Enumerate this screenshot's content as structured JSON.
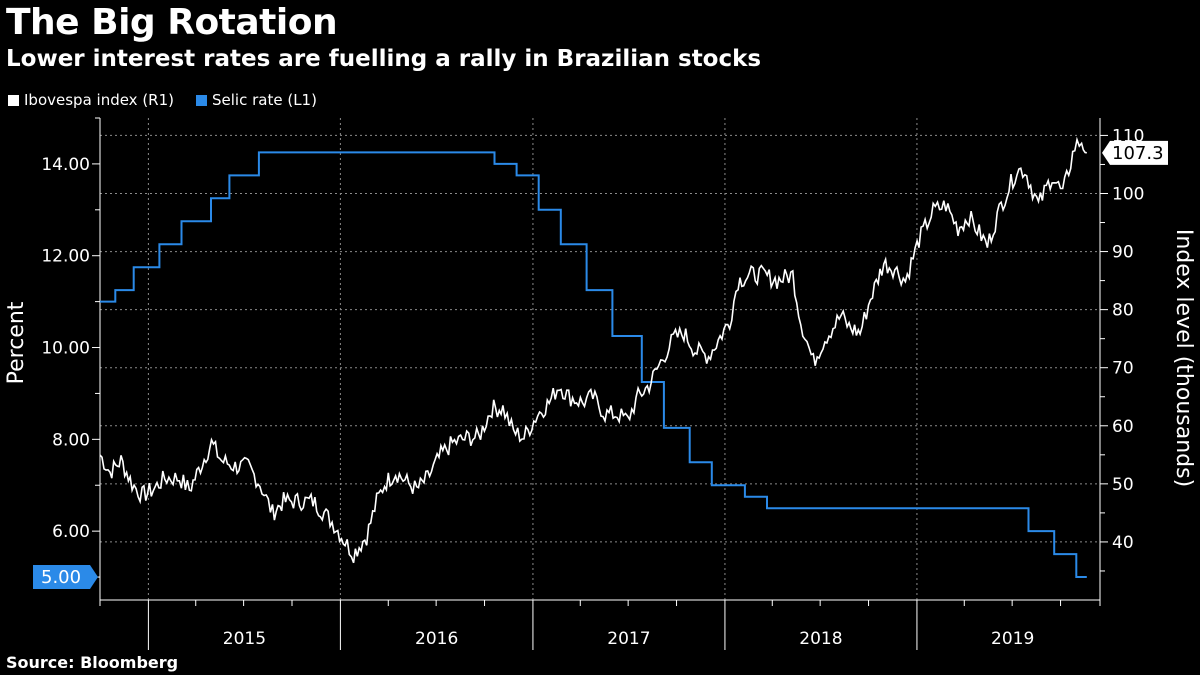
{
  "title": "The Big Rotation",
  "subtitle": "Lower interest rates are fuelling a rally in Brazilian stocks",
  "source": "Source:  Bloomberg",
  "colors": {
    "background": "#000000",
    "ibovespa": "#ffffff",
    "selic": "#2b8ae8",
    "grid": "#8a8a8a"
  },
  "chart_data": {
    "type": "line",
    "x_ticks": [
      "2015",
      "2016",
      "2017",
      "2018",
      "2019"
    ],
    "left_axis": {
      "label": "Percent",
      "ticks": [
        "6.00",
        "8.00",
        "10.00",
        "12.00",
        "14.00"
      ],
      "range": [
        4.5,
        15.0
      ]
    },
    "right_axis": {
      "label": "Index level (thousands)",
      "ticks": [
        "40",
        "50",
        "60",
        "70",
        "80",
        "90",
        "100",
        "110"
      ],
      "range": [
        30,
        113
      ]
    },
    "callouts": {
      "selic_last": "5.00",
      "ibovespa_last": "107.3"
    },
    "series": [
      {
        "name": "Selic rate (L1)",
        "axis": "left",
        "step": true,
        "points": [
          [
            "2014-10-01",
            11.0
          ],
          [
            "2014-10-30",
            11.25
          ],
          [
            "2014-12-04",
            11.75
          ],
          [
            "2015-01-22",
            12.25
          ],
          [
            "2015-03-05",
            12.75
          ],
          [
            "2015-04-30",
            13.25
          ],
          [
            "2015-06-04",
            13.75
          ],
          [
            "2015-07-30",
            14.25
          ],
          [
            "2016-10-20",
            14.0
          ],
          [
            "2016-12-01",
            13.75
          ],
          [
            "2017-01-12",
            13.0
          ],
          [
            "2017-02-23",
            12.25
          ],
          [
            "2017-04-13",
            11.25
          ],
          [
            "2017-06-01",
            10.25
          ],
          [
            "2017-07-27",
            9.25
          ],
          [
            "2017-09-07",
            8.25
          ],
          [
            "2017-10-26",
            7.5
          ],
          [
            "2017-12-07",
            7.0
          ],
          [
            "2018-02-08",
            6.75
          ],
          [
            "2018-03-22",
            6.5
          ],
          [
            "2019-08-01",
            6.0
          ],
          [
            "2019-09-19",
            5.5
          ],
          [
            "2019-10-31",
            5.0
          ],
          [
            "2019-11-20",
            5.0
          ]
        ]
      },
      {
        "name": "Ibovespa index (R1)",
        "axis": "right",
        "step": false,
        "points": [
          [
            "2014-10-01",
            55
          ],
          [
            "2014-10-20",
            52
          ],
          [
            "2014-11-10",
            54
          ],
          [
            "2014-12-01",
            50
          ],
          [
            "2014-12-20",
            48
          ],
          [
            "2015-01-10",
            49
          ],
          [
            "2015-02-01",
            51
          ],
          [
            "2015-03-01",
            51
          ],
          [
            "2015-03-20",
            49
          ],
          [
            "2015-04-10",
            53
          ],
          [
            "2015-05-01",
            57
          ],
          [
            "2015-05-20",
            54
          ],
          [
            "2015-06-15",
            53
          ],
          [
            "2015-07-10",
            53
          ],
          [
            "2015-08-01",
            50
          ],
          [
            "2015-08-25",
            45
          ],
          [
            "2015-09-15",
            47
          ],
          [
            "2015-10-15",
            47
          ],
          [
            "2015-11-10",
            47
          ],
          [
            "2015-12-01",
            45
          ],
          [
            "2015-12-20",
            43
          ],
          [
            "2016-01-10",
            40
          ],
          [
            "2016-01-26",
            38
          ],
          [
            "2016-02-20",
            41
          ],
          [
            "2016-03-10",
            47
          ],
          [
            "2016-03-25",
            50
          ],
          [
            "2016-04-15",
            52
          ],
          [
            "2016-05-10",
            50
          ],
          [
            "2016-05-25",
            49
          ],
          [
            "2016-06-15",
            51
          ],
          [
            "2016-07-10",
            55
          ],
          [
            "2016-08-01",
            57
          ],
          [
            "2016-09-01",
            58
          ],
          [
            "2016-09-20",
            58
          ],
          [
            "2016-10-15",
            63
          ],
          [
            "2016-11-05",
            63
          ],
          [
            "2016-11-25",
            59
          ],
          [
            "2016-12-15",
            58
          ],
          [
            "2017-01-10",
            62
          ],
          [
            "2017-02-01",
            64
          ],
          [
            "2017-02-20",
            67
          ],
          [
            "2017-03-10",
            65
          ],
          [
            "2017-04-05",
            64
          ],
          [
            "2017-04-25",
            65
          ],
          [
            "2017-05-18",
            62
          ],
          [
            "2017-06-10",
            62
          ],
          [
            "2017-06-30",
            61
          ],
          [
            "2017-07-20",
            65
          ],
          [
            "2017-08-10",
            67
          ],
          [
            "2017-09-01",
            71
          ],
          [
            "2017-09-25",
            75
          ],
          [
            "2017-10-15",
            76
          ],
          [
            "2017-11-05",
            73
          ],
          [
            "2017-12-01",
            72
          ],
          [
            "2018-01-10",
            78
          ],
          [
            "2018-01-26",
            85
          ],
          [
            "2018-02-20",
            86
          ],
          [
            "2018-03-15",
            86
          ],
          [
            "2018-04-10",
            85
          ],
          [
            "2018-05-10",
            86
          ],
          [
            "2018-05-25",
            78
          ],
          [
            "2018-06-18",
            71
          ],
          [
            "2018-07-10",
            75
          ],
          [
            "2018-08-10",
            79
          ],
          [
            "2018-08-25",
            77
          ],
          [
            "2018-09-15",
            76
          ],
          [
            "2018-10-05",
            82
          ],
          [
            "2018-10-30",
            88
          ],
          [
            "2018-11-20",
            87
          ],
          [
            "2018-12-10",
            85
          ],
          [
            "2019-01-05",
            92
          ],
          [
            "2019-02-01",
            97
          ],
          [
            "2019-02-25",
            98
          ],
          [
            "2019-03-20",
            94
          ],
          [
            "2019-04-10",
            96
          ],
          [
            "2019-05-15",
            91
          ],
          [
            "2019-06-10",
            98
          ],
          [
            "2019-07-10",
            104
          ],
          [
            "2019-07-25",
            104
          ],
          [
            "2019-08-20",
            98
          ],
          [
            "2019-09-15",
            103
          ],
          [
            "2019-10-05",
            100
          ],
          [
            "2019-10-28",
            108
          ],
          [
            "2019-11-10",
            109
          ],
          [
            "2019-11-20",
            107
          ]
        ]
      }
    ]
  }
}
